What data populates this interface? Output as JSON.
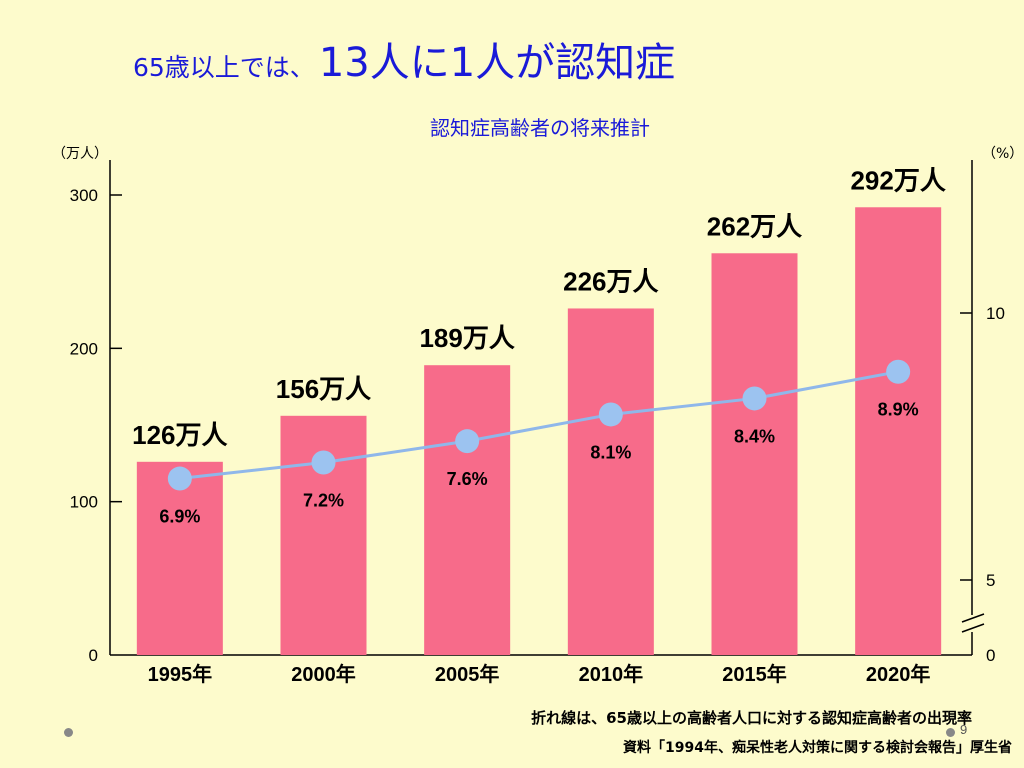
{
  "title": {
    "prefix": "65歳以上では、",
    "main": "13人に1人が認知症"
  },
  "subtitle": "認知症高齢者の将来推計",
  "notes": {
    "line_note": "折れ線は、65歳以上の高齢者人口に対する認知症高齢者の出現率",
    "source": "資料「1994年、痴呆性老人対策に関する検討会報告」厚生省"
  },
  "page_number": "9",
  "colors": {
    "bar": "#f76b8a",
    "line": "#8fb7ea",
    "marker": "#9cc3f0",
    "title": "#1a1ad8",
    "background": "#fdfbcc"
  },
  "chart_data": {
    "type": "bar",
    "categories": [
      "1995年",
      "2000年",
      "2005年",
      "2010年",
      "2015年",
      "2020年"
    ],
    "values": [
      126,
      156,
      189,
      226,
      262,
      292
    ],
    "bar_labels": [
      "126万人",
      "156万人",
      "189万人",
      "226万人",
      "262万人",
      "292万人"
    ],
    "left_axis": {
      "unit": "（万人）",
      "ylim": [
        0,
        300
      ],
      "ticks": [
        "0",
        "100",
        "200",
        "300"
      ]
    },
    "right_axis": {
      "unit": "（%）",
      "ticks": [
        "0",
        "5",
        "10"
      ],
      "broken": true
    },
    "line_series": {
      "values": [
        6.9,
        7.2,
        7.6,
        8.1,
        8.4,
        8.9
      ],
      "labels": [
        "6.9%",
        "7.2%",
        "7.6%",
        "8.1%",
        "8.4%",
        "8.9%"
      ]
    }
  }
}
